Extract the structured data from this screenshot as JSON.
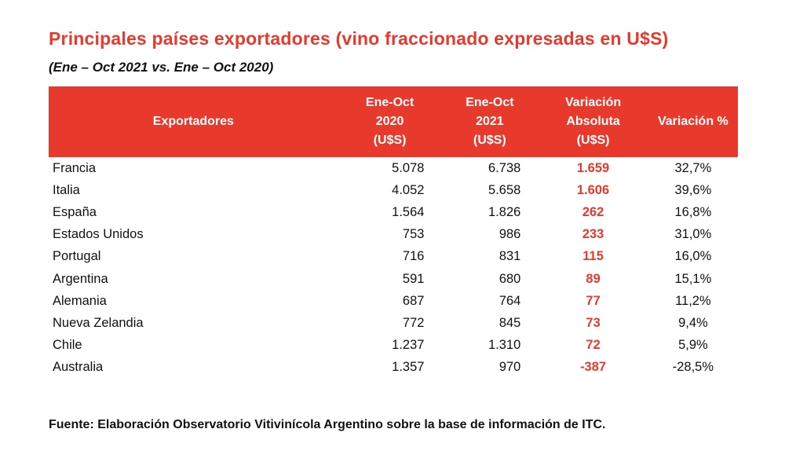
{
  "colors": {
    "accent_red": "#e8392d",
    "header_bg": "#e8392d",
    "header_text": "#ffffff",
    "body_text": "#111111"
  },
  "title": "Principales países exportadores (vino fraccionado expresadas en U$S)",
  "subtitle": "(Ene – Oct 2021 vs. Ene – Oct 2020)",
  "table": {
    "columns": [
      "Exportadores",
      "Ene-Oct\n2020\n(U$S)",
      "Ene-Oct\n2021\n(U$S)",
      "Variación\nAbsoluta\n(U$S)",
      "Variación %"
    ],
    "rows": [
      {
        "exportador": "Francia",
        "v2020": "5.078",
        "v2021": "6.738",
        "abs": "1.659",
        "pct": "32,7%"
      },
      {
        "exportador": "Italia",
        "v2020": "4.052",
        "v2021": "5.658",
        "abs": "1.606",
        "pct": "39,6%"
      },
      {
        "exportador": "España",
        "v2020": "1.564",
        "v2021": "1.826",
        "abs": "262",
        "pct": "16,8%"
      },
      {
        "exportador": "Estados Unidos",
        "v2020": "753",
        "v2021": "986",
        "abs": "233",
        "pct": "31,0%"
      },
      {
        "exportador": "Portugal",
        "v2020": "716",
        "v2021": "831",
        "abs": "115",
        "pct": "16,0%"
      },
      {
        "exportador": "Argentina",
        "v2020": "591",
        "v2021": "680",
        "abs": "89",
        "pct": "15,1%"
      },
      {
        "exportador": "Alemania",
        "v2020": "687",
        "v2021": "764",
        "abs": "77",
        "pct": "11,2%"
      },
      {
        "exportador": "Nueva Zelandia",
        "v2020": "772",
        "v2021": "845",
        "abs": "73",
        "pct": "9,4%"
      },
      {
        "exportador": "Chile",
        "v2020": "1.237",
        "v2021": "1.310",
        "abs": "72",
        "pct": "5,9%"
      },
      {
        "exportador": "Australia",
        "v2020": "1.357",
        "v2021": "970",
        "abs": "-387",
        "pct": "-28,5%"
      }
    ]
  },
  "footer": "Fuente: Elaboración Observatorio Vitivinícola Argentino sobre la base de información de ITC.",
  "chart_data": {
    "type": "table",
    "title": "Principales países exportadores (vino fraccionado expresadas en U$S)",
    "subtitle": "(Ene – Oct 2021 vs. Ene – Oct 2020)",
    "columns": [
      "Exportadores",
      "Ene-Oct 2020 (U$S)",
      "Ene-Oct 2021 (U$S)",
      "Variación Absoluta (U$S)",
      "Variación %"
    ],
    "rows": [
      {
        "exportador": "Francia",
        "ene_oct_2020": 5078,
        "ene_oct_2021": 6738,
        "variacion_absoluta": 1659,
        "variacion_pct": 32.7
      },
      {
        "exportador": "Italia",
        "ene_oct_2020": 4052,
        "ene_oct_2021": 5658,
        "variacion_absoluta": 1606,
        "variacion_pct": 39.6
      },
      {
        "exportador": "España",
        "ene_oct_2020": 1564,
        "ene_oct_2021": 1826,
        "variacion_absoluta": 262,
        "variacion_pct": 16.8
      },
      {
        "exportador": "Estados Unidos",
        "ene_oct_2020": 753,
        "ene_oct_2021": 986,
        "variacion_absoluta": 233,
        "variacion_pct": 31.0
      },
      {
        "exportador": "Portugal",
        "ene_oct_2020": 716,
        "ene_oct_2021": 831,
        "variacion_absoluta": 115,
        "variacion_pct": 16.0
      },
      {
        "exportador": "Argentina",
        "ene_oct_2020": 591,
        "ene_oct_2021": 680,
        "variacion_absoluta": 89,
        "variacion_pct": 15.1
      },
      {
        "exportador": "Alemania",
        "ene_oct_2020": 687,
        "ene_oct_2021": 764,
        "variacion_absoluta": 77,
        "variacion_pct": 11.2
      },
      {
        "exportador": "Nueva Zelandia",
        "ene_oct_2020": 772,
        "ene_oct_2021": 845,
        "variacion_absoluta": 73,
        "variacion_pct": 9.4
      },
      {
        "exportador": "Chile",
        "ene_oct_2020": 1237,
        "ene_oct_2021": 1310,
        "variacion_absoluta": 72,
        "variacion_pct": 5.9
      },
      {
        "exportador": "Australia",
        "ene_oct_2020": 1357,
        "ene_oct_2021": 970,
        "variacion_absoluta": -387,
        "variacion_pct": -28.5
      }
    ],
    "source": "Fuente: Elaboración Observatorio Vitivinícola Argentino sobre la base de información de ITC."
  }
}
